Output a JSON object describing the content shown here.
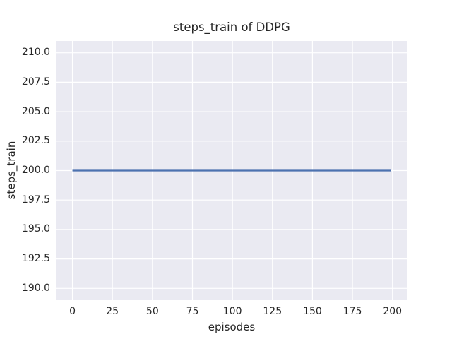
{
  "figure": {
    "background": "#ffffff",
    "text_color": "#262626"
  },
  "chart_data": {
    "type": "line",
    "title": "steps_train of DDPG",
    "xlabel": "episodes",
    "ylabel": "steps_train",
    "xlim": [
      -9.95,
      208.95
    ],
    "ylim": [
      189,
      211
    ],
    "x_ticks": [
      0,
      25,
      50,
      75,
      100,
      125,
      150,
      175,
      200
    ],
    "x_tick_labels": [
      "0",
      "25",
      "50",
      "75",
      "100",
      "125",
      "150",
      "175",
      "200"
    ],
    "y_ticks": [
      190.0,
      192.5,
      195.0,
      197.5,
      200.0,
      202.5,
      205.0,
      207.5,
      210.0
    ],
    "y_tick_labels": [
      "190.0",
      "192.5",
      "195.0",
      "197.5",
      "200.0",
      "202.5",
      "205.0",
      "207.5",
      "210.0"
    ],
    "grid": true,
    "legend_position": "none",
    "plot_background": "#eaeaf2",
    "grid_color": "#ffffff",
    "series": [
      {
        "name": "steps_train",
        "color": "#4c72b0",
        "linewidth": 2.2,
        "x": [
          0,
          199
        ],
        "y": [
          200,
          200
        ]
      }
    ]
  }
}
